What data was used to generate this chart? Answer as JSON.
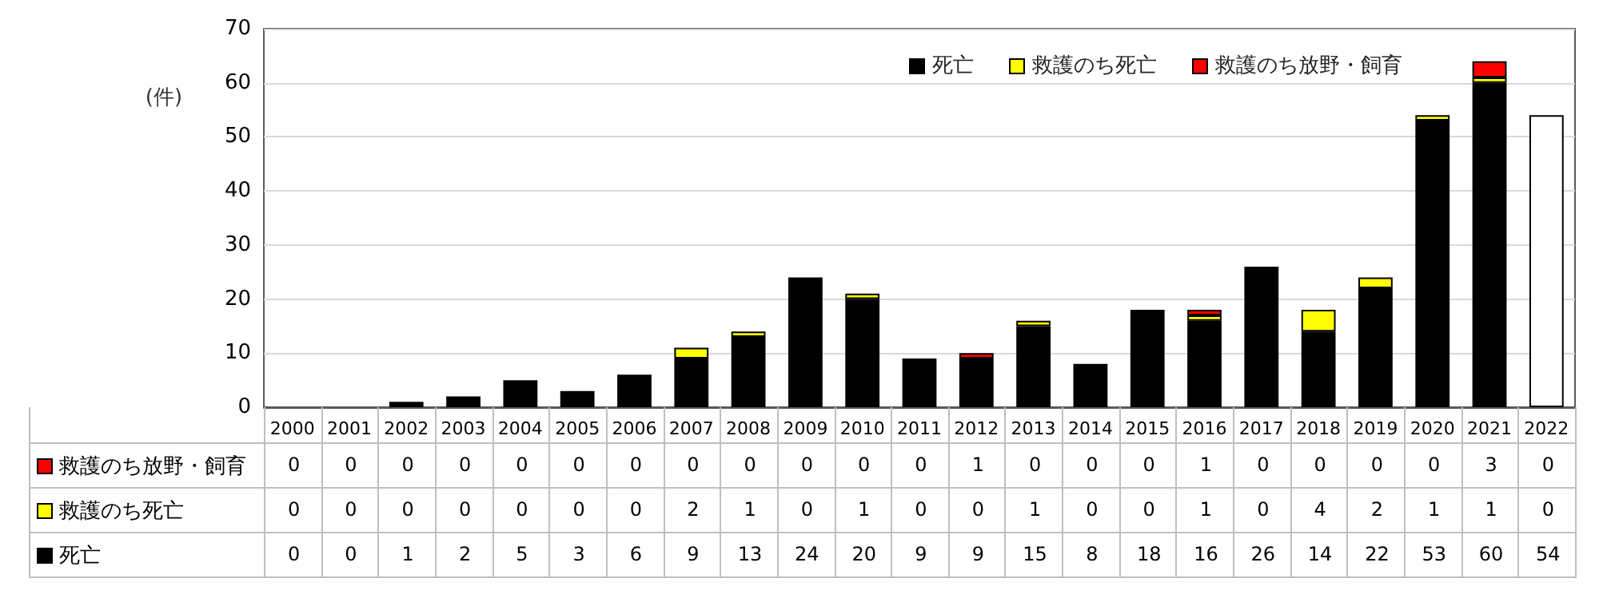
{
  "chart_data": {
    "type": "bar",
    "stacked": true,
    "ylabel": "(件)",
    "categories": [
      "2000",
      "2001",
      "2002",
      "2003",
      "2004",
      "2005",
      "2006",
      "2007",
      "2008",
      "2009",
      "2010",
      "2011",
      "2012",
      "2013",
      "2014",
      "2015",
      "2016",
      "2017",
      "2018",
      "2019",
      "2020",
      "2021",
      "2022"
    ],
    "series": [
      {
        "name": "死亡",
        "color": "#000000",
        "colors": [
          "#000000",
          "#000000",
          "#000000",
          "#000000",
          "#000000",
          "#000000",
          "#000000",
          "#000000",
          "#000000",
          "#000000",
          "#000000",
          "#000000",
          "#000000",
          "#000000",
          "#000000",
          "#000000",
          "#000000",
          "#000000",
          "#000000",
          "#000000",
          "#000000",
          "#000000",
          "#ffffff"
        ],
        "values": [
          0,
          0,
          1,
          2,
          5,
          3,
          6,
          9,
          13,
          24,
          20,
          9,
          9,
          15,
          8,
          18,
          16,
          26,
          14,
          22,
          53,
          60,
          54
        ]
      },
      {
        "name": "救護のち死亡",
        "color": "#ffff00",
        "values": [
          0,
          0,
          0,
          0,
          0,
          0,
          0,
          2,
          1,
          0,
          1,
          0,
          0,
          1,
          0,
          0,
          1,
          0,
          4,
          2,
          1,
          1,
          0
        ]
      },
      {
        "name": "救護のち放野・飼育",
        "color": "#ff0000",
        "values": [
          0,
          0,
          0,
          0,
          0,
          0,
          0,
          0,
          0,
          0,
          0,
          0,
          1,
          0,
          0,
          0,
          1,
          0,
          0,
          0,
          0,
          3,
          0
        ]
      }
    ],
    "ylim": [
      0,
      70
    ],
    "yticks": [
      0,
      10,
      20,
      30,
      40,
      50,
      60,
      70
    ],
    "grid": "y",
    "legend": "top right",
    "data_labels": true
  }
}
